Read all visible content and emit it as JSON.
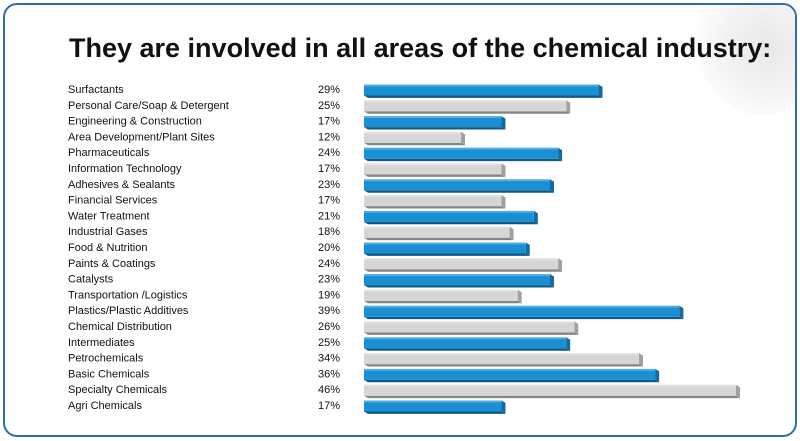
{
  "title": "They are involved in all areas of the chemical industry:",
  "colors": {
    "accent": "#1a8fd4",
    "alt": "#d6d6d6",
    "frame": "#2a6fa8",
    "text": "#111111"
  },
  "chart_data": {
    "type": "bar",
    "orientation": "horizontal",
    "value_suffix": "%",
    "categories": [
      "Surfactants",
      "Personal Care/Soap & Detergent",
      "Engineering & Construction",
      "Area Development/Plant Sites",
      "Pharmaceuticals",
      "Information Technology",
      "Adhesives & Sealants",
      "Financial Services",
      "Water Treatment",
      "Industrial Gases",
      "Food & Nutrition",
      "Paints & Coatings",
      "Catalysts",
      "Transportation /Logistics",
      "Plastics/Plastic Additives",
      "Chemical Distribution",
      "Intermediates",
      "Petrochemicals",
      "Basic Chemicals",
      "Specialty Chemicals",
      "Agri Chemicals"
    ],
    "values": [
      29,
      25,
      17,
      12,
      24,
      17,
      23,
      17,
      21,
      18,
      20,
      24,
      23,
      19,
      39,
      26,
      25,
      34,
      36,
      46,
      17
    ],
    "value_labels": [
      "29%",
      "25%",
      "17%",
      "12%",
      "24%",
      "17%",
      "23%",
      "17%",
      "21%",
      "18%",
      "20%",
      "24%",
      "23%",
      "19%",
      "39%",
      "26%",
      "25%",
      "34%",
      "36%",
      "46%",
      "17%"
    ],
    "bar_colors": [
      "blue",
      "gray",
      "blue",
      "gray",
      "blue",
      "gray",
      "blue",
      "gray",
      "blue",
      "gray",
      "blue",
      "gray",
      "blue",
      "gray",
      "blue",
      "gray",
      "blue",
      "gray",
      "blue",
      "gray",
      "blue"
    ],
    "xlim": [
      0,
      46
    ],
    "grid": false,
    "legend": "none"
  }
}
